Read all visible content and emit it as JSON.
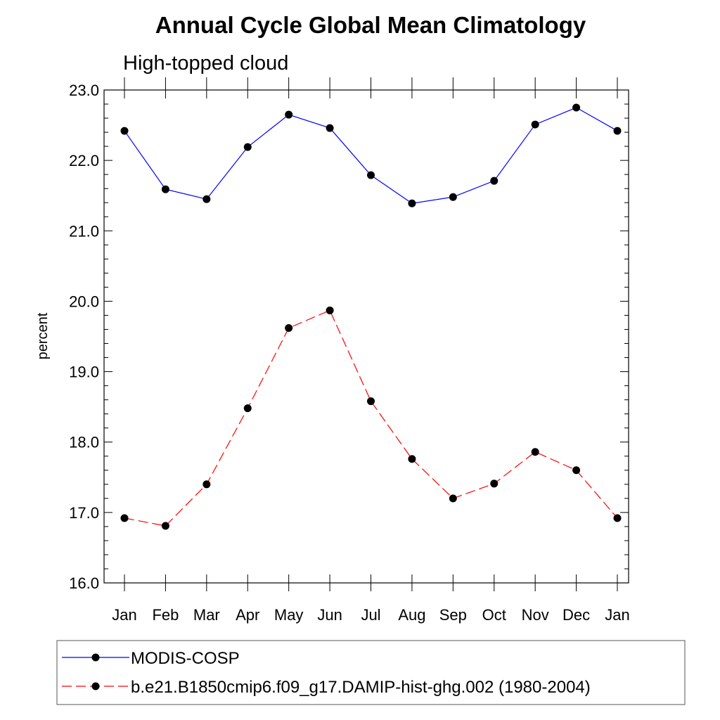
{
  "chart_data": {
    "type": "line",
    "title": "Annual Cycle Global Mean Climatology",
    "subtitle": "High-topped cloud",
    "xlabel": "",
    "ylabel": "percent",
    "categories": [
      "Jan",
      "Feb",
      "Mar",
      "Apr",
      "May",
      "Jun",
      "Jul",
      "Aug",
      "Sep",
      "Oct",
      "Nov",
      "Dec",
      "Jan"
    ],
    "ylim": [
      16.0,
      23.0
    ],
    "yticks": [
      "16.0",
      "17.0",
      "18.0",
      "19.0",
      "20.0",
      "21.0",
      "22.0",
      "23.0"
    ],
    "grid": false,
    "legend_position": "bottom",
    "series": [
      {
        "name": "MODIS-COSP",
        "color": "#0000ff",
        "line_style": "solid",
        "marker": "filled-circle",
        "values": [
          22.42,
          21.59,
          21.45,
          22.19,
          22.65,
          22.46,
          21.79,
          21.39,
          21.48,
          21.71,
          22.51,
          22.75,
          22.42
        ]
      },
      {
        "name": "b.e21.B1850cmip6.f09_g17.DAMIP-hist-ghg.002 (1980-2004)",
        "color": "#ff0000",
        "line_style": "dashed",
        "marker": "filled-circle",
        "values": [
          16.92,
          16.81,
          17.4,
          18.48,
          19.62,
          19.87,
          18.58,
          17.76,
          17.2,
          17.41,
          17.86,
          17.6,
          16.92
        ]
      }
    ]
  }
}
